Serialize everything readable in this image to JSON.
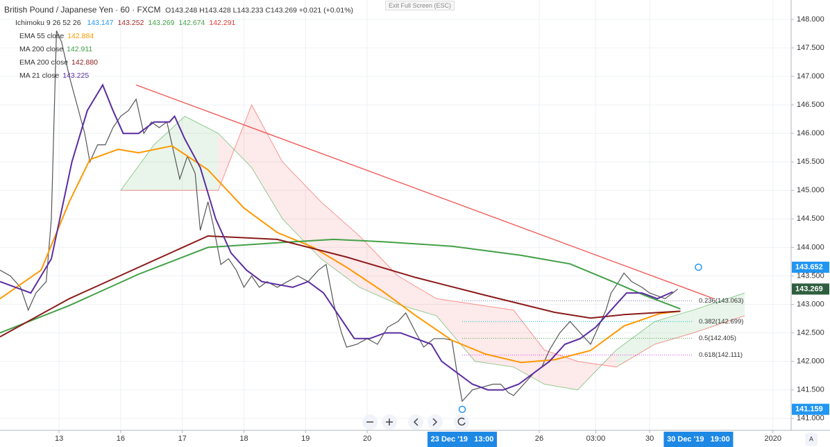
{
  "chart_data": {
    "type": "line",
    "title": "British Pound / Japanese Yen · 60 · FXCM",
    "ohlc": "O143.248 H143.428 L143.233 C143.269 +0.021 (+0.01%)",
    "ichimoku": {
      "name": "Ichimoku 9 26 52 26",
      "value_labels": [
        {
          "label": "143.147",
          "color": "#2196f3"
        },
        {
          "label": "143.252",
          "color": "#a52a2a"
        },
        {
          "label": "143.269",
          "color": "#43a047"
        },
        {
          "label": "142.674",
          "color": "#43a047"
        },
        {
          "label": "142.291",
          "color": "#e53935"
        }
      ],
      "x": [
        47,
        60,
        72,
        85,
        98,
        110,
        125,
        140,
        155,
        170,
        185,
        200,
        212,
        225,
        240,
        255,
        270,
        290
      ],
      "span_a": [
        145.0,
        145.8,
        146.3,
        146.0,
        145.4,
        144.5,
        143.8,
        143.3,
        143.0,
        142.8,
        142.0,
        141.9,
        141.6,
        141.5,
        142.2,
        142.7,
        142.9,
        143.2
      ],
      "span_b": [
        145.0,
        145.0,
        145.0,
        145.0,
        146.5,
        145.5,
        144.8,
        144.2,
        143.5,
        143.1,
        143.0,
        142.9,
        142.2,
        142.0,
        141.9,
        142.3,
        142.5,
        142.8
      ]
    },
    "xlim": [
      0,
      308.1
    ],
    "ylim": [
      140.79,
      148.34
    ],
    "xticks": [
      {
        "value": 23,
        "label": "13"
      },
      {
        "value": 47,
        "label": "16"
      },
      {
        "value": 71,
        "label": "17"
      },
      {
        "value": 95,
        "label": "18"
      },
      {
        "value": 119,
        "label": "19"
      },
      {
        "value": 143,
        "label": "20"
      },
      {
        "value": 210,
        "label": "26"
      },
      {
        "value": 232,
        "label": "03:00"
      },
      {
        "value": 253,
        "label": "30"
      },
      {
        "value": 301,
        "label": "2020"
      }
    ],
    "yticks": [
      {
        "value": 141,
        "label": "141.000"
      },
      {
        "value": 141.5,
        "label": "141.500"
      },
      {
        "value": 142,
        "label": "142.000"
      },
      {
        "value": 142.5,
        "label": "142.500"
      },
      {
        "value": 143,
        "label": "143.000"
      },
      {
        "value": 143.5,
        "label": "143.500"
      },
      {
        "value": 144,
        "label": "144.000"
      },
      {
        "value": 144.5,
        "label": "144.500"
      },
      {
        "value": 145,
        "label": "145.000"
      },
      {
        "value": 145.5,
        "label": "145.500"
      },
      {
        "value": 146,
        "label": "146.000"
      },
      {
        "value": 146.5,
        "label": "146.500"
      },
      {
        "value": 147,
        "label": "147.000"
      },
      {
        "value": 147.5,
        "label": "147.500"
      },
      {
        "value": 148,
        "label": "148.000"
      }
    ],
    "grid": true,
    "series": [
      {
        "color": "#555555",
        "x": [
          0,
          4,
          8,
          11,
          14,
          18,
          20,
          22,
          24,
          27,
          30,
          33,
          35,
          38,
          41,
          44,
          47,
          50,
          53,
          56,
          59,
          62,
          65,
          67,
          70,
          73,
          76,
          78,
          81,
          83,
          86,
          89,
          92,
          95,
          98,
          101,
          104,
          108,
          112,
          116,
          120,
          124,
          127,
          130,
          133,
          135,
          139,
          143,
          147,
          151,
          155,
          158,
          162,
          165,
          169,
          173,
          176,
          178,
          180,
          184,
          188,
          192,
          195,
          198,
          200,
          204,
          208,
          211,
          214,
          218,
          222,
          226,
          230,
          233,
          236,
          238,
          241,
          243,
          246,
          250,
          253,
          256,
          259,
          262,
          264
        ],
        "values": [
          143.6,
          143.5,
          143.3,
          142.9,
          143.2,
          143.4,
          144.5,
          147.8,
          147.6,
          147.0,
          146.5,
          146.0,
          145.5,
          145.8,
          145.8,
          146.1,
          146.3,
          146.4,
          146.6,
          146.0,
          146.2,
          146.1,
          146.2,
          145.8,
          145.2,
          145.6,
          145.3,
          144.3,
          144.8,
          144.4,
          143.7,
          143.8,
          143.6,
          143.3,
          143.5,
          143.3,
          143.4,
          143.3,
          143.4,
          143.5,
          143.4,
          143.6,
          143.7,
          143.0,
          142.5,
          142.25,
          142.3,
          142.4,
          142.3,
          142.6,
          142.7,
          142.85,
          142.5,
          142.25,
          142.4,
          142.4,
          142.37,
          141.8,
          141.3,
          141.5,
          141.55,
          141.6,
          141.6,
          141.45,
          141.4,
          141.6,
          141.8,
          141.9,
          142.2,
          142.5,
          142.7,
          142.5,
          142.3,
          142.6,
          142.9,
          143.2,
          143.4,
          143.55,
          143.4,
          143.3,
          143.2,
          143.15,
          143.1,
          143.2,
          143.27
        ]
      },
      {
        "name": "EMA 55 close",
        "legend_value": "142.884",
        "color": "#ff9800",
        "x": [
          0,
          16,
          27,
          35,
          46,
          54,
          67,
          81,
          95,
          108,
          122,
          135,
          149,
          162,
          176,
          189,
          203,
          216,
          230,
          243,
          257,
          265
        ],
        "values": [
          143.1,
          143.6,
          144.8,
          145.54,
          145.72,
          145.66,
          145.78,
          145.36,
          144.69,
          144.26,
          144.0,
          143.65,
          143.23,
          142.8,
          142.37,
          142.13,
          141.98,
          142.03,
          142.19,
          142.62,
          142.84,
          142.88
        ]
      },
      {
        "name": "MA 200 close",
        "legend_value": "142.911",
        "color": "#43a047",
        "x": [
          0,
          27,
          54,
          81,
          108,
          130,
          149,
          176,
          203,
          222,
          238,
          251,
          265
        ],
        "values": [
          142.5,
          142.98,
          143.53,
          144.0,
          144.08,
          144.14,
          144.1,
          144.02,
          143.86,
          143.71,
          143.41,
          143.16,
          142.92
        ]
      },
      {
        "name": "EMA 200 close",
        "legend_value": "142.880",
        "color": "#8b1a1a",
        "x": [
          0,
          27,
          54,
          81,
          108,
          135,
          162,
          189,
          216,
          230,
          243,
          265
        ],
        "values": [
          142.43,
          143.1,
          143.65,
          144.2,
          144.14,
          143.83,
          143.47,
          143.16,
          142.86,
          142.76,
          142.82,
          142.88
        ]
      },
      {
        "name": "MA 21 close",
        "legend_value": "143.225",
        "color": "#5b2ca0",
        "x": [
          0,
          12,
          20,
          28,
          34,
          40,
          44,
          48,
          54,
          60,
          66,
          68,
          72,
          78,
          84,
          90,
          96,
          102,
          108,
          114,
          120,
          126,
          132,
          138,
          144,
          150,
          156,
          162,
          168,
          172,
          178,
          184,
          190,
          196,
          202,
          208,
          214,
          220,
          226,
          232,
          238,
          244,
          250,
          256,
          262
        ],
        "values": [
          143.4,
          143.2,
          143.8,
          145.5,
          146.4,
          146.85,
          146.4,
          146.0,
          146.0,
          146.2,
          146.2,
          146.3,
          145.9,
          145.4,
          144.5,
          143.9,
          143.6,
          143.4,
          143.35,
          143.3,
          143.4,
          143.2,
          142.8,
          142.4,
          142.4,
          142.5,
          142.5,
          142.4,
          142.3,
          142.0,
          141.8,
          141.6,
          141.5,
          141.5,
          141.6,
          141.8,
          142.0,
          142.3,
          142.4,
          142.6,
          142.9,
          143.2,
          143.2,
          143.1,
          143.22
        ]
      }
    ],
    "trendline": {
      "color": "#ef5350",
      "x": [
        53,
        278
      ],
      "values": [
        146.85,
        143.1
      ]
    },
    "fib_levels": {
      "x": [
        180,
        270
      ],
      "levels": [
        {
          "value": 143.063,
          "label": "0.236(143.063)",
          "color": "#7e6fa8"
        },
        {
          "value": 142.699,
          "label": "0.382(142.699)",
          "color": "#00bcd4"
        },
        {
          "value": 142.405,
          "label": "0.5(142.405)",
          "color": "#43a047"
        },
        {
          "value": 142.111,
          "label": "0.618(142.111)",
          "color": "#e040fb"
        }
      ]
    },
    "price_labels": [
      {
        "value": 143.652,
        "label": "143.652",
        "color": "#2196f3",
        "x": 272
      },
      {
        "value": 143.269,
        "label": "143.269",
        "color": "#2e5e3e"
      },
      {
        "value": 141.159,
        "label": "141.159",
        "color": "#2196f3",
        "x": 180
      }
    ],
    "x_highlights": [
      {
        "value": 180,
        "label": "23 Dec '19   13:00"
      },
      {
        "value": 272,
        "label": "30 Dec '19   19:00"
      }
    ]
  },
  "ui": {
    "exit_fullscreen": "Exit Full Screen (ESC)",
    "auto_button": "A"
  }
}
